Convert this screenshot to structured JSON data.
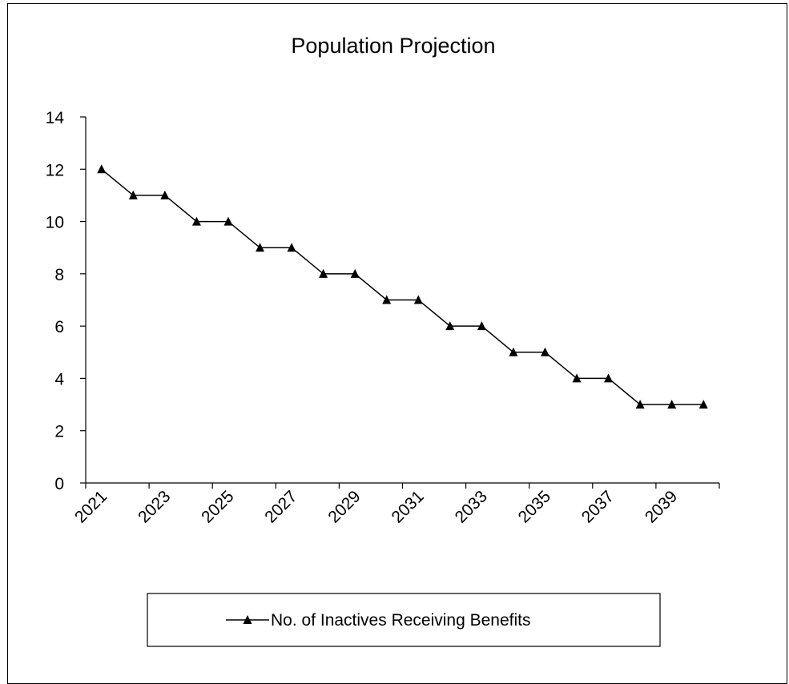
{
  "chart_data": {
    "type": "line",
    "title": "Population Projection",
    "xlabel": "",
    "ylabel": "",
    "ylim": [
      0,
      14
    ],
    "yticks": [
      0,
      2,
      4,
      6,
      8,
      10,
      12,
      14
    ],
    "x": [
      2021,
      2022,
      2023,
      2024,
      2025,
      2026,
      2027,
      2028,
      2029,
      2030,
      2031,
      2032,
      2033,
      2034,
      2035,
      2036,
      2037,
      2038,
      2039,
      2040
    ],
    "x_tick_labels": [
      "2021",
      "2023",
      "2025",
      "2027",
      "2029",
      "2031",
      "2033",
      "2035",
      "2037",
      "2039"
    ],
    "series": [
      {
        "name": "No. of  Inactives Receiving Benefits",
        "values": [
          12,
          11,
          11,
          10,
          10,
          9,
          9,
          8,
          8,
          7,
          7,
          6,
          6,
          5,
          5,
          4,
          4,
          3,
          3,
          3
        ],
        "marker": "triangle",
        "color": "#000000"
      }
    ],
    "grid": false,
    "legend_position": "bottom"
  }
}
